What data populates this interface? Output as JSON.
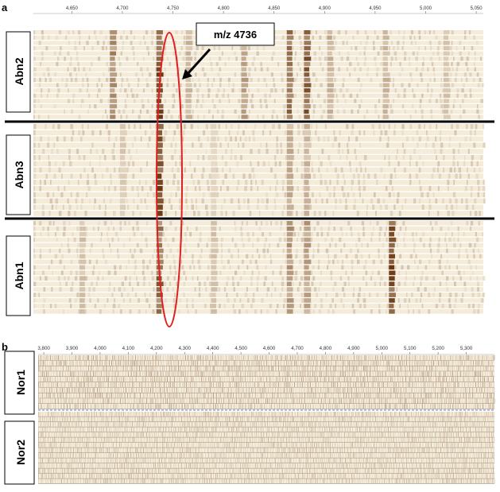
{
  "panels": [
    {
      "id": "a",
      "letter": "a",
      "axis": {
        "ticks": [
          4650,
          4700,
          4750,
          4800,
          4850,
          4900,
          4950,
          5000,
          5050
        ],
        "tick_labels": [
          "4,650",
          "4,700",
          "4,750",
          "4,800",
          "4,850",
          "4,900",
          "4,950",
          "5,000",
          "5,050"
        ],
        "min": 4612,
        "max": 5057
      },
      "groups": [
        {
          "label": "Abn2",
          "rows": 17,
          "peaks": [
            {
              "mz": 4690,
              "int": 0.55
            },
            {
              "mz": 4736,
              "int": 0.95
            },
            {
              "mz": 4765,
              "int": 0.3
            },
            {
              "mz": 4820,
              "int": 0.45
            },
            {
              "mz": 4865,
              "int": 0.75
            },
            {
              "mz": 4882,
              "int": 0.8
            },
            {
              "mz": 4905,
              "int": 0.35
            },
            {
              "mz": 4960,
              "int": 0.3
            },
            {
              "mz": 5020,
              "int": 0.25
            }
          ]
        },
        {
          "label": "Abn3",
          "rows": 15,
          "peaks": [
            {
              "mz": 4736,
              "int": 0.9
            },
            {
              "mz": 4700,
              "int": 0.2
            },
            {
              "mz": 4865,
              "int": 0.35
            },
            {
              "mz": 4882,
              "int": 0.3
            },
            {
              "mz": 4790,
              "int": 0.15
            }
          ]
        },
        {
          "label": "Abn1",
          "rows": 17,
          "peaks": [
            {
              "mz": 4736,
              "int": 0.75
            },
            {
              "mz": 4966,
              "int": 0.95
            },
            {
              "mz": 4865,
              "int": 0.5
            },
            {
              "mz": 4882,
              "int": 0.45
            },
            {
              "mz": 4660,
              "int": 0.25
            },
            {
              "mz": 4790,
              "int": 0.25
            }
          ]
        }
      ],
      "annotation": {
        "text": "m/z 4736",
        "mz": 4736
      }
    },
    {
      "id": "b",
      "letter": "b",
      "axis": {
        "ticks": [
          3800,
          3900,
          4000,
          4100,
          4200,
          4300,
          4400,
          4500,
          4600,
          4700,
          4800,
          4900,
          5000,
          5100,
          5200,
          5300
        ],
        "tick_labels": [
          "3,800",
          "3,900",
          "4,000",
          "4,100",
          "4,200",
          "4,300",
          "4,400",
          "4,500",
          "4,600",
          "4,700",
          "4,800",
          "4,900",
          "5,000",
          "5,100",
          "5,200",
          "5,300"
        ],
        "min": 3780,
        "max": 5400
      },
      "groups": [
        {
          "label": "Nor1",
          "rows": 10
        },
        {
          "label": "Nor2",
          "rows": 14
        }
      ]
    }
  ],
  "colors": {
    "background": "#ffffff",
    "lane_base": "#f4ecd9",
    "peak_dark": "#6b3610",
    "divider": "#000000",
    "highlight": "#e02020"
  }
}
